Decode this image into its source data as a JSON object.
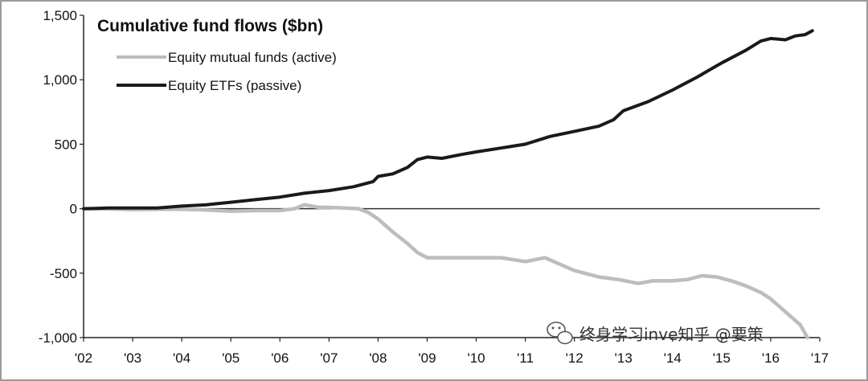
{
  "chart_data": {
    "type": "line",
    "title": "Cumulative fund flows ($bn)",
    "xlabel": "",
    "ylabel": "",
    "x_ticks": [
      "'02",
      "'03",
      "'04",
      "'05",
      "'06",
      "'07",
      "'08",
      "'09",
      "'10",
      "'11",
      "'12",
      "'13",
      "'14",
      "'15",
      "'16",
      "'17"
    ],
    "y_ticks": [
      1500,
      1000,
      500,
      0,
      -500,
      -1000
    ],
    "y_tick_labels": [
      "1,500",
      "1,000",
      "500",
      "0",
      "-500",
      "-1,000"
    ],
    "ylim": [
      -1000,
      1500
    ],
    "xlim": [
      2002,
      2017
    ],
    "grid": false,
    "zero_line": true,
    "legend_position": "top-left",
    "series": [
      {
        "name": "Equity mutual funds (active)",
        "color": "#bdbdbd",
        "x": [
          2002.0,
          2002.5,
          2003.0,
          2003.5,
          2004.0,
          2004.5,
          2005.0,
          2005.5,
          2006.0,
          2006.3,
          2006.5,
          2006.8,
          2007.0,
          2007.3,
          2007.6,
          2007.8,
          2008.0,
          2008.3,
          2008.6,
          2008.8,
          2009.0,
          2009.5,
          2010.0,
          2010.5,
          2011.0,
          2011.4,
          2011.7,
          2012.0,
          2012.5,
          2012.9,
          2013.3,
          2013.6,
          2014.0,
          2014.3,
          2014.6,
          2014.9,
          2015.2,
          2015.5,
          2015.8,
          2016.0,
          2016.3,
          2016.6,
          2016.75
        ],
        "values": [
          0,
          -2,
          -8,
          -5,
          -5,
          -10,
          -20,
          -15,
          -15,
          0,
          30,
          10,
          10,
          5,
          0,
          -30,
          -80,
          -180,
          -270,
          -340,
          -380,
          -380,
          -380,
          -380,
          -410,
          -380,
          -430,
          -480,
          -530,
          -550,
          -580,
          -560,
          -560,
          -550,
          -520,
          -530,
          -560,
          -600,
          -650,
          -700,
          -800,
          -900,
          -1000
        ]
      },
      {
        "name": "Equity ETFs (passive)",
        "color": "#1a1a1a",
        "x": [
          2002.0,
          2002.5,
          2003.0,
          2003.5,
          2004.0,
          2004.5,
          2005.0,
          2005.5,
          2006.0,
          2006.5,
          2007.0,
          2007.5,
          2007.9,
          2008.0,
          2008.3,
          2008.6,
          2008.8,
          2009.0,
          2009.3,
          2009.7,
          2010.0,
          2010.5,
          2011.0,
          2011.5,
          2012.0,
          2012.5,
          2012.8,
          2013.0,
          2013.5,
          2014.0,
          2014.5,
          2015.0,
          2015.5,
          2015.8,
          2016.0,
          2016.3,
          2016.5,
          2016.7,
          2016.85
        ],
        "values": [
          0,
          5,
          5,
          5,
          20,
          30,
          50,
          70,
          90,
          120,
          140,
          170,
          210,
          250,
          270,
          320,
          380,
          400,
          390,
          420,
          440,
          470,
          500,
          560,
          600,
          640,
          690,
          760,
          830,
          920,
          1020,
          1130,
          1230,
          1300,
          1320,
          1310,
          1340,
          1350,
          1380
        ]
      }
    ]
  },
  "watermark": {
    "text": "终身学习inve知乎 @要策",
    "icon": "wechat-icon"
  }
}
